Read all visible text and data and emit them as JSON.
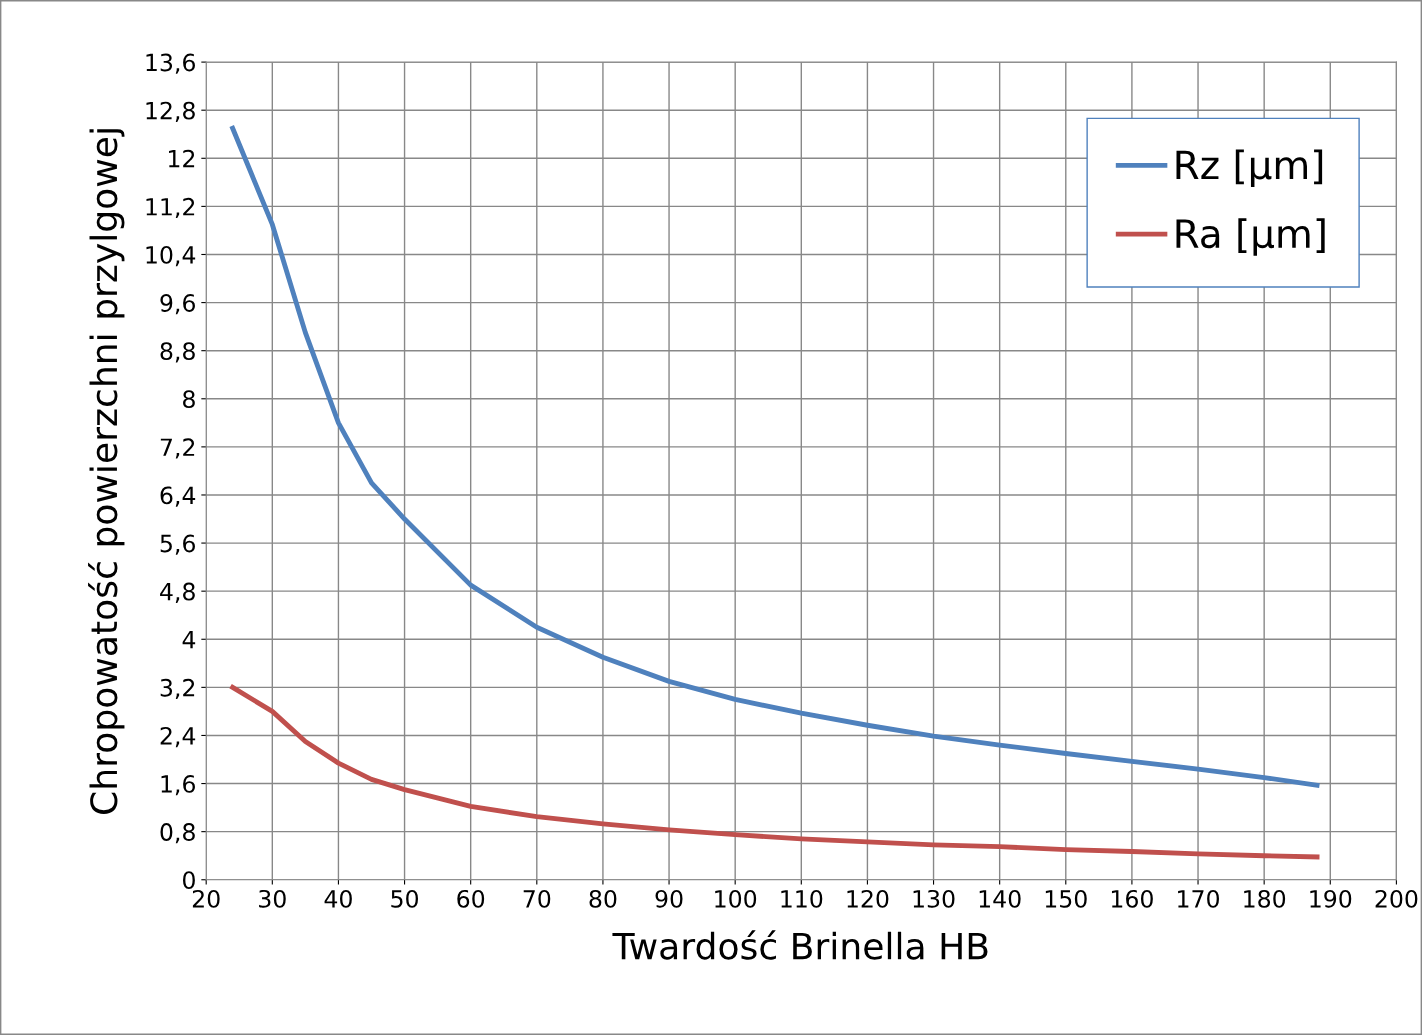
{
  "chart_data": {
    "type": "line",
    "xlabel": "Twardość Brinella HB",
    "ylabel": "Chropowatość powierzchni przylgowej",
    "xlim": [
      20,
      200
    ],
    "xticks": [
      20,
      30,
      40,
      50,
      60,
      70,
      80,
      90,
      100,
      110,
      120,
      130,
      140,
      150,
      160,
      170,
      180,
      190,
      200
    ],
    "ylim": [
      0,
      13.6
    ],
    "yticks": [
      0,
      {
        "value": 0.8,
        "label": "0,8"
      },
      {
        "value": 1.6,
        "label": "1,6"
      },
      {
        "value": 2.4,
        "label": "2,4"
      },
      {
        "value": 3.2,
        "label": "3,2"
      },
      4,
      {
        "value": 4.8,
        "label": "4,8"
      },
      {
        "value": 5.6,
        "label": "5,6"
      },
      {
        "value": 6.4,
        "label": "6,4"
      },
      {
        "value": 7.2,
        "label": "7,2"
      },
      8,
      {
        "value": 8.8,
        "label": "8,8"
      },
      {
        "value": 9.6,
        "label": "9,6"
      },
      {
        "value": 10.4,
        "label": "10,4"
      },
      {
        "value": 11.2,
        "label": "11,2"
      },
      12,
      {
        "value": 12.8,
        "label": "12,8"
      },
      {
        "value": 13.6,
        "label": "13,6"
      }
    ],
    "grid": true,
    "legend": "top right",
    "marker": "none",
    "line_style": "solid",
    "series": [
      {
        "name": "Rz [µm]",
        "color": "#4f81bd",
        "x": [
          24,
          30,
          35,
          40,
          45,
          50,
          60,
          70,
          80,
          90,
          100,
          110,
          120,
          130,
          140,
          150,
          160,
          170,
          180,
          188
        ],
        "values": [
          12.5,
          10.9,
          9.1,
          7.6,
          6.6,
          6.0,
          4.9,
          4.2,
          3.7,
          3.3,
          3.0,
          2.77,
          2.57,
          2.39,
          2.24,
          2.1,
          1.97,
          1.84,
          1.7,
          1.57
        ]
      },
      {
        "name": "Ra [µm]",
        "color": "#c0504d",
        "x": [
          24,
          30,
          35,
          40,
          45,
          50,
          60,
          70,
          80,
          90,
          100,
          110,
          120,
          130,
          140,
          150,
          160,
          170,
          180,
          188
        ],
        "values": [
          3.2,
          2.8,
          2.3,
          1.94,
          1.67,
          1.5,
          1.22,
          1.05,
          0.93,
          0.83,
          0.75,
          0.68,
          0.63,
          0.58,
          0.55,
          0.5,
          0.47,
          0.43,
          0.4,
          0.38
        ]
      }
    ]
  }
}
